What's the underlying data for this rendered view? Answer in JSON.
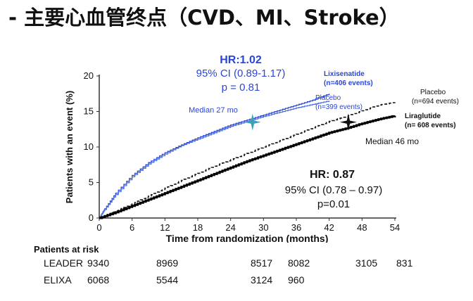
{
  "slide": {
    "title": "- 主要心血管终点（CVD、MI、Stroke）"
  },
  "chart_data": {
    "type": "line",
    "xlabel": "Time from randomization (months)",
    "ylabel": "Patients with an event (%)",
    "xlim": [
      0,
      54
    ],
    "ylim": [
      0,
      20
    ],
    "xticks": [
      0,
      6,
      12,
      18,
      24,
      30,
      36,
      42,
      48,
      54
    ],
    "yticks": [
      0,
      5,
      10,
      15,
      20
    ],
    "grid": false,
    "series": [
      {
        "name": "Lixisenatide",
        "label_sub": "(n=406 events)",
        "color": "#2b45d6",
        "dash": false,
        "x": [
          0,
          1,
          3,
          6,
          9,
          12,
          15,
          18,
          21,
          24,
          27,
          30,
          33,
          36,
          39,
          42
        ],
        "y": [
          0,
          1.3,
          3.5,
          6.0,
          7.8,
          9.2,
          10.3,
          11.3,
          12.2,
          13.1,
          13.8,
          14.5,
          15.2,
          15.9,
          16.6,
          17.5
        ]
      },
      {
        "name": "Placebo",
        "label_sub": "(n=399 events)",
        "color": "#4a6fe0",
        "dash": false,
        "x": [
          0,
          1,
          3,
          6,
          9,
          12,
          15,
          18,
          21,
          24,
          27,
          30,
          33,
          36,
          39,
          42
        ],
        "y": [
          0,
          1.2,
          3.3,
          5.8,
          7.6,
          9.0,
          10.2,
          11.1,
          12.0,
          12.9,
          13.6,
          14.3,
          14.9,
          15.5,
          16.0,
          16.5
        ]
      },
      {
        "name": "Placebo",
        "label_sub": "(n=694 events)",
        "color": "#111111",
        "dash": true,
        "x": [
          0,
          3,
          6,
          9,
          12,
          15,
          18,
          21,
          24,
          27,
          30,
          33,
          36,
          39,
          42,
          45,
          48,
          51,
          54
        ],
        "y": [
          0,
          1.0,
          2.0,
          3.1,
          4.2,
          5.3,
          6.3,
          7.3,
          8.2,
          9.1,
          10.0,
          10.9,
          11.8,
          12.7,
          13.6,
          14.3,
          15.1,
          15.9,
          16.3
        ]
      },
      {
        "name": "Liraglutide",
        "label_sub": "(n= 608 events)",
        "color": "#000000",
        "dash": false,
        "x": [
          0,
          3,
          6,
          9,
          12,
          15,
          18,
          21,
          24,
          27,
          30,
          33,
          36,
          39,
          42,
          45,
          48,
          51,
          54
        ],
        "y": [
          0,
          0.8,
          1.7,
          2.6,
          3.5,
          4.4,
          5.3,
          6.2,
          7.1,
          8.0,
          8.8,
          9.6,
          10.4,
          11.2,
          12.0,
          12.6,
          13.3,
          13.9,
          14.4
        ]
      }
    ],
    "annotations": {
      "elixa": {
        "hr": "HR:1.02",
        "ci": "95% CI (0.89-1.17)",
        "p": "p = 0.81",
        "median": "Median 27 mo",
        "color": "#2b45d6",
        "median_x": 28,
        "median_y": 13.5
      },
      "leader": {
        "hr": "HR: 0.87",
        "ci": "95% CI (0.78 – 0.97)",
        "p": "p=0.01",
        "median": "Median 46 mo",
        "color": "#111111",
        "median_x": 45.5,
        "median_y": 13.5
      }
    }
  },
  "risk_table": {
    "header": "Patients at risk",
    "rows": [
      {
        "label": "LEADER",
        "values": [
          "9340",
          "8969",
          "8517",
          "8082",
          "3105",
          "831"
        ]
      },
      {
        "label": "ELIXA",
        "values": [
          "6068",
          "5544",
          "3124",
          "960"
        ]
      }
    ]
  }
}
